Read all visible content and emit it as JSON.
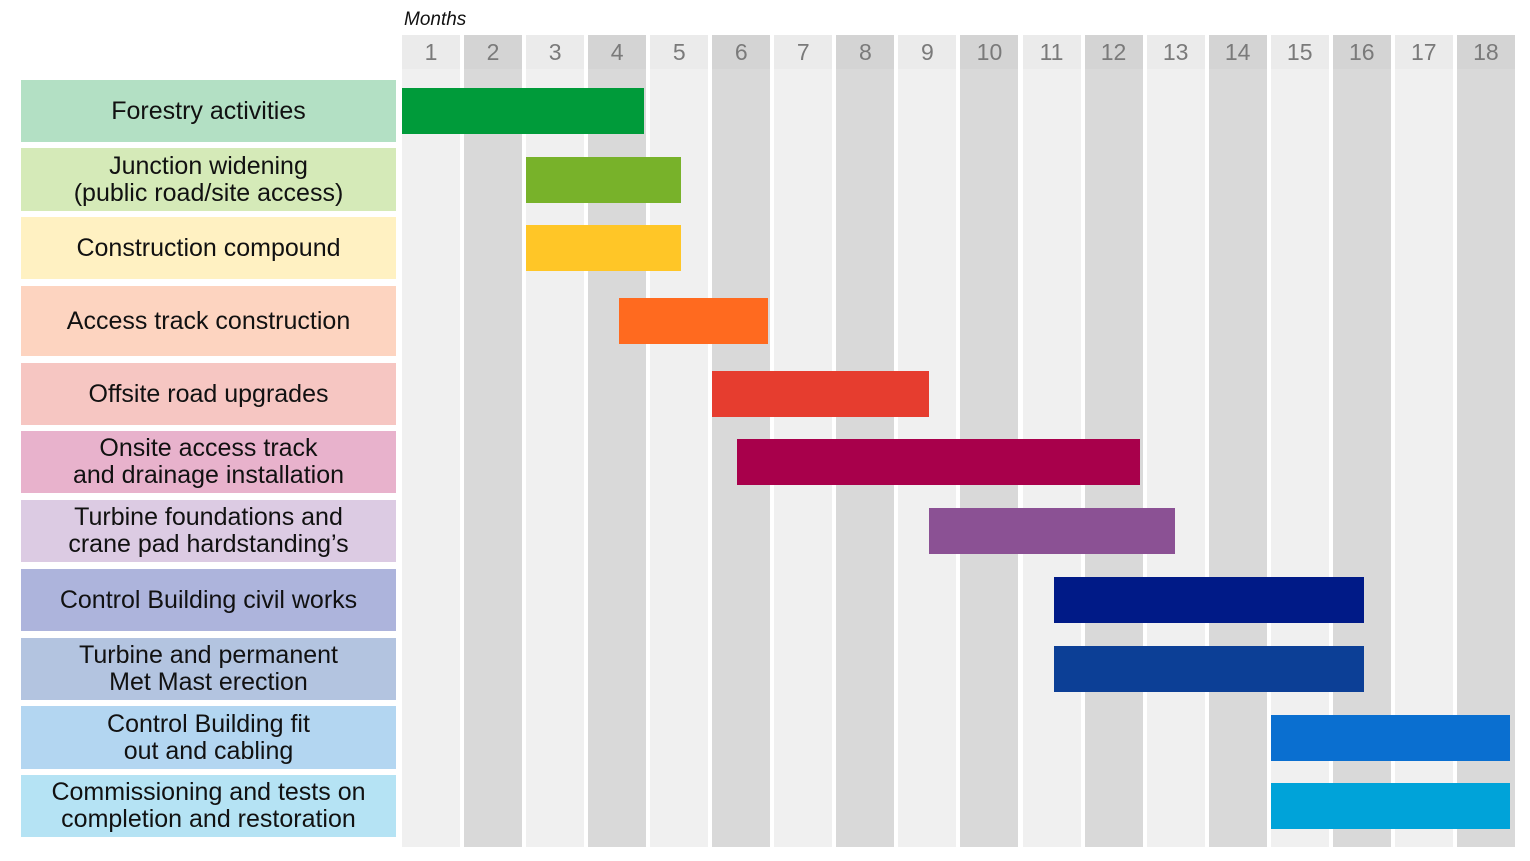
{
  "chart_data": {
    "type": "gantt",
    "xlabel": "Months",
    "months": [
      "1",
      "2",
      "3",
      "4",
      "5",
      "6",
      "7",
      "8",
      "9",
      "10",
      "11",
      "12",
      "13",
      "14",
      "15",
      "16",
      "17",
      "18"
    ],
    "tasks": [
      {
        "label": "Forestry activities",
        "start": 0,
        "end": 3.9,
        "bar_color": "#009b3a",
        "label_bg": "#b3e0c4"
      },
      {
        "label": "Junction widening\n(public road/site access)",
        "start": 2,
        "end": 4.5,
        "bar_color": "#78b22a",
        "label_bg": "#d5eab8"
      },
      {
        "label": "Construction compound",
        "start": 2,
        "end": 4.5,
        "bar_color": "#ffc627",
        "label_bg": "#fff1c2"
      },
      {
        "label": "Access track construction",
        "start": 3.5,
        "end": 5.9,
        "bar_color": "#ff6a1f",
        "label_bg": "#fdd4c0"
      },
      {
        "label": "Offsite road upgrades",
        "start": 5,
        "end": 8.5,
        "bar_color": "#e63d2f",
        "label_bg": "#f6c6c2"
      },
      {
        "label": "Onsite access track\nand drainage installation",
        "start": 5.4,
        "end": 11.9,
        "bar_color": "#a8004b",
        "label_bg": "#e8b2cc"
      },
      {
        "label": "Turbine foundations and\ncrane pad hardstanding’s",
        "start": 8.5,
        "end": 12.45,
        "bar_color": "#8b5194",
        "label_bg": "#dccbe3"
      },
      {
        "label": "Control Building civil works",
        "start": 10.5,
        "end": 15.5,
        "bar_color": "#001a87",
        "label_bg": "#adb4dc"
      },
      {
        "label": "Turbine and permanent\nMet Mast erection",
        "start": 10.5,
        "end": 15.5,
        "bar_color": "#0c3f96",
        "label_bg": "#b3c4e0"
      },
      {
        "label": "Control Building fit\nout and cabling",
        "start": 14,
        "end": 18,
        "bar_color": "#0a6fd0",
        "label_bg": "#b3d6f1"
      },
      {
        "label": "Commissioning and tests on\ncompletion and restoration",
        "start": 14,
        "end": 18,
        "bar_color": "#00a3d9",
        "label_bg": "#b5e3f4"
      }
    ],
    "column_colors": {
      "odd": "#f0f0f0",
      "even": "#d9d9d9"
    }
  }
}
